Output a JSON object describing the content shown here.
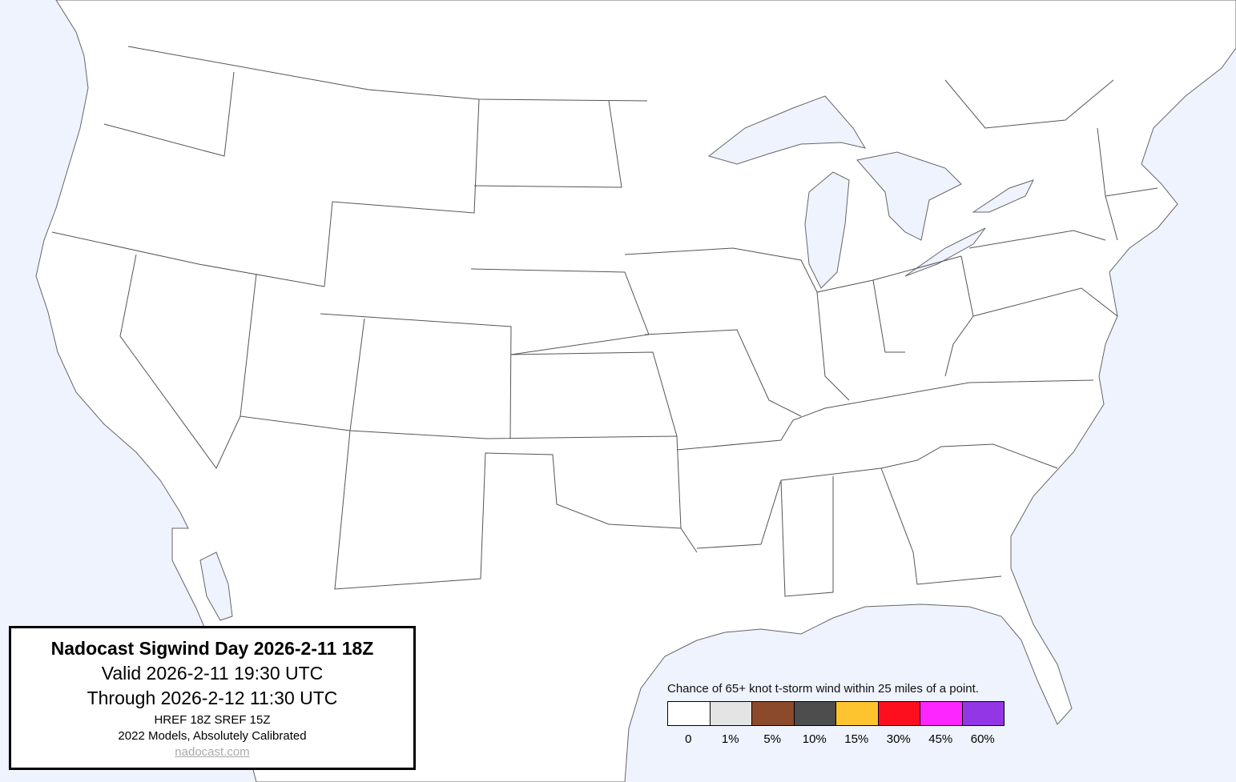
{
  "info": {
    "title": "Nadocast Sigwind Day 2026-2-11 18Z",
    "valid": "Valid 2026-2-11 19:30 UTC",
    "through": "Through 2026-2-12 11:30 UTC",
    "models": "HREF 18Z SREF 15Z",
    "calibration": "2022 Models, Absolutely Calibrated",
    "link": "nadocast.com"
  },
  "legend": {
    "title": "Chance of 65+ knot t-storm wind within 25 miles of a point.",
    "items": [
      {
        "label": "0",
        "color": "#ffffff"
      },
      {
        "label": "1%",
        "color": "#e4e4e4"
      },
      {
        "label": "5%",
        "color": "#8b4a2b"
      },
      {
        "label": "10%",
        "color": "#4d4d4d"
      },
      {
        "label": "15%",
        "color": "#fec42f"
      },
      {
        "label": "30%",
        "color": "#fe0f1e"
      },
      {
        "label": "45%",
        "color": "#fe26fe"
      },
      {
        "label": "60%",
        "color": "#9336e6"
      }
    ]
  },
  "colors": {
    "water": "#eef3fd",
    "land": "#ffffff",
    "border": "#555555"
  }
}
